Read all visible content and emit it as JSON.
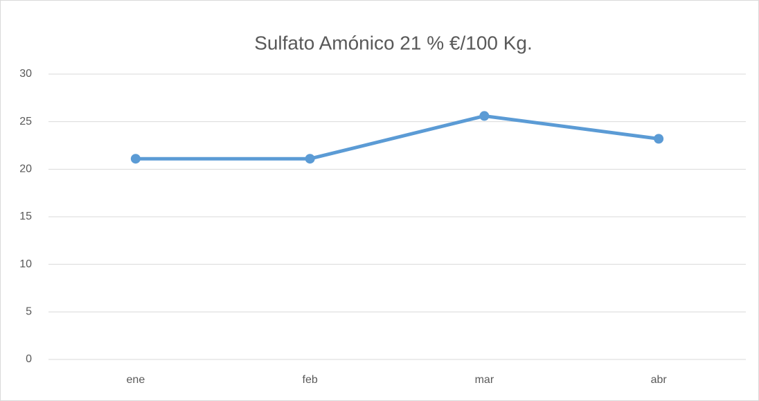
{
  "chart_data": {
    "type": "line",
    "title": "Sulfato Amónico 21 % €/100 Kg.",
    "categories": [
      "ene",
      "feb",
      "mar",
      "abr"
    ],
    "series": [
      {
        "name": "Sulfato Amónico 21 % €/100 Kg.",
        "color": "#5b9bd5",
        "values": [
          21.1,
          21.1,
          25.6,
          23.2
        ]
      }
    ],
    "ylim": [
      0,
      30
    ],
    "yticks": [
      0,
      5,
      10,
      15,
      20,
      25,
      30
    ],
    "grid": true
  }
}
